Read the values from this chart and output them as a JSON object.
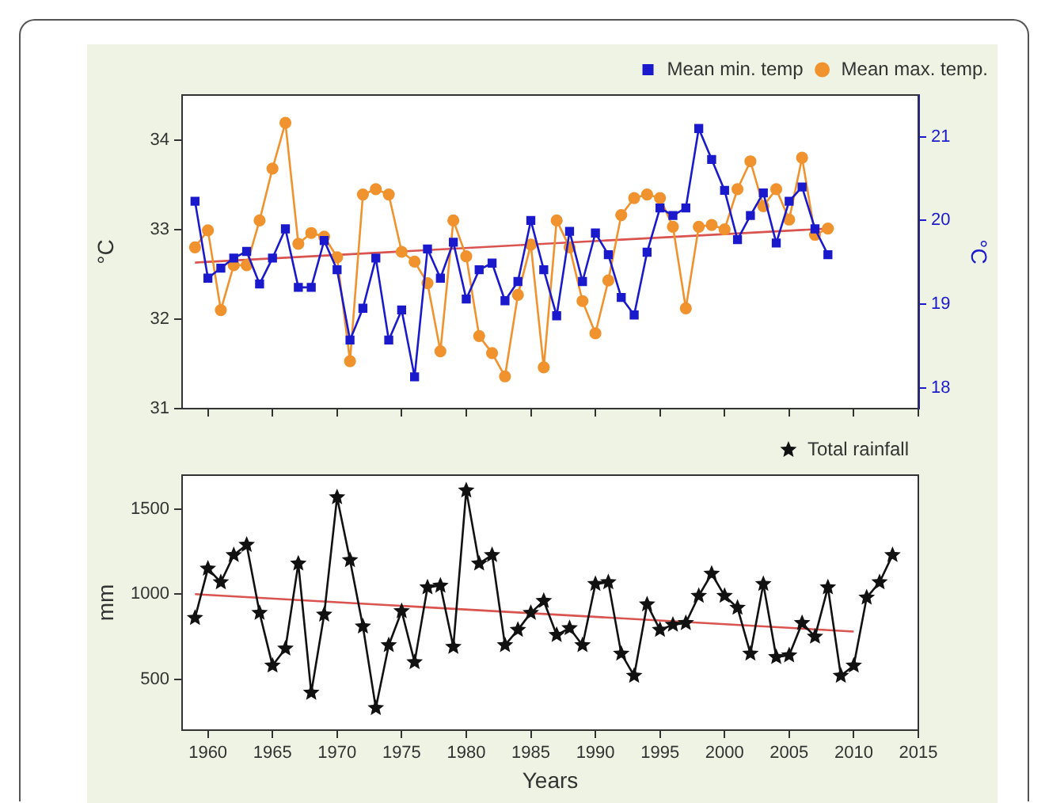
{
  "chart_data": [
    {
      "type": "line",
      "ylabel": "°C",
      "y2label": "°C",
      "x": [
        1959,
        1960,
        1961,
        1962,
        1963,
        1964,
        1965,
        1966,
        1967,
        1968,
        1969,
        1970,
        1971,
        1972,
        1973,
        1974,
        1975,
        1976,
        1977,
        1978,
        1979,
        1980,
        1981,
        1982,
        1983,
        1984,
        1985,
        1986,
        1987,
        1988,
        1989,
        1990,
        1991,
        1992,
        1993,
        1994,
        1995,
        1996,
        1997,
        1998,
        1999,
        2000,
        2001,
        2002,
        2003,
        2004,
        2005,
        2006,
        2007,
        2008
      ],
      "series": [
        {
          "name": "Mean max. temp.",
          "color": "#f0922e",
          "marker": "circle",
          "values": [
            32.8,
            32.99,
            32.1,
            32.6,
            32.6,
            33.1,
            33.68,
            34.19,
            32.84,
            32.96,
            32.92,
            32.69,
            31.53,
            33.39,
            33.45,
            33.39,
            32.75,
            32.64,
            32.4,
            31.64,
            33.1,
            32.7,
            31.81,
            31.62,
            31.36,
            32.27,
            32.83,
            31.46,
            33.1,
            32.8,
            32.2,
            31.84,
            32.43,
            33.16,
            33.35,
            33.39,
            33.35,
            33.03,
            32.12,
            33.03,
            33.05,
            33.0,
            33.45,
            33.76,
            33.26,
            33.45,
            33.11,
            33.8,
            32.94,
            33.01
          ]
        },
        {
          "name": "Mean min. temp",
          "color": "#1a1acc",
          "marker": "square",
          "axis": "y2",
          "values": [
            20.23,
            19.31,
            19.43,
            19.55,
            19.63,
            19.24,
            19.55,
            19.9,
            19.2,
            19.2,
            19.76,
            19.41,
            18.57,
            18.95,
            19.55,
            18.57,
            18.93,
            18.13,
            19.66,
            19.31,
            19.74,
            19.06,
            19.41,
            19.49,
            19.04,
            19.27,
            20.0,
            19.41,
            18.86,
            19.87,
            19.27,
            19.85,
            19.59,
            19.08,
            18.87,
            19.62,
            20.15,
            20.06,
            20.15,
            21.1,
            20.73,
            20.36,
            19.77,
            20.06,
            20.33,
            19.73,
            20.23,
            20.4,
            19.9,
            19.59
          ]
        },
        {
          "type": "line",
          "color": "#d9534f",
          "marker": "none",
          "x": [
            1959,
            2008
          ],
          "values": [
            32.63,
            33.01
          ]
        }
      ],
      "xlim": [
        1958,
        2015
      ],
      "xticks": [
        1960,
        1965,
        1970,
        1975,
        1980,
        1985,
        1990,
        1995,
        2000,
        2005,
        2010,
        2015
      ],
      "ylim": [
        31,
        34.5
      ],
      "yticks": [
        31,
        32,
        33,
        34
      ],
      "y2lim": [
        17.75,
        21.5
      ],
      "y2ticks": [
        18,
        19,
        20,
        21
      ],
      "tick_labels": "y",
      "legend": "top right",
      "grid": false
    },
    {
      "type": "line",
      "xlabel": "Years",
      "ylabel": "mm",
      "x": [
        1959,
        1960,
        1961,
        1962,
        1963,
        1964,
        1965,
        1966,
        1967,
        1968,
        1969,
        1970,
        1971,
        1972,
        1973,
        1974,
        1975,
        1976,
        1977,
        1978,
        1979,
        1980,
        1981,
        1982,
        1983,
        1984,
        1985,
        1986,
        1987,
        1988,
        1989,
        1990,
        1991,
        1992,
        1993,
        1994,
        1995,
        1996,
        1997,
        1998,
        1999,
        2000,
        2001,
        2002,
        2003,
        2004,
        2005,
        2006,
        2007,
        2008,
        2009,
        2010,
        2011,
        2012,
        2013
      ],
      "series": [
        {
          "name": "Total rainfall",
          "color": "#111111",
          "marker": "star",
          "values": [
            860,
            1150,
            1070,
            1230,
            1290,
            890,
            580,
            680,
            1180,
            420,
            880,
            1570,
            1200,
            810,
            330,
            700,
            900,
            600,
            1040,
            1050,
            690,
            1610,
            1180,
            1230,
            700,
            790,
            890,
            960,
            760,
            800,
            700,
            1060,
            1070,
            650,
            520,
            940,
            790,
            820,
            830,
            990,
            1120,
            990,
            920,
            650,
            1060,
            630,
            640,
            830,
            750,
            1040,
            520,
            580,
            980,
            1070,
            1230
          ]
        },
        {
          "type": "line",
          "color": "#d9534f",
          "marker": "none",
          "x": [
            1959,
            2010
          ],
          "values": [
            1000,
            780
          ]
        }
      ],
      "xlim": [
        1958,
        2015
      ],
      "xticks": [
        1960,
        1965,
        1970,
        1975,
        1980,
        1985,
        1990,
        1995,
        2000,
        2005,
        2010,
        2015
      ],
      "ylim": [
        200,
        1700
      ],
      "yticks": [
        500,
        1000,
        1500
      ],
      "legend": "top right",
      "grid": false
    }
  ]
}
